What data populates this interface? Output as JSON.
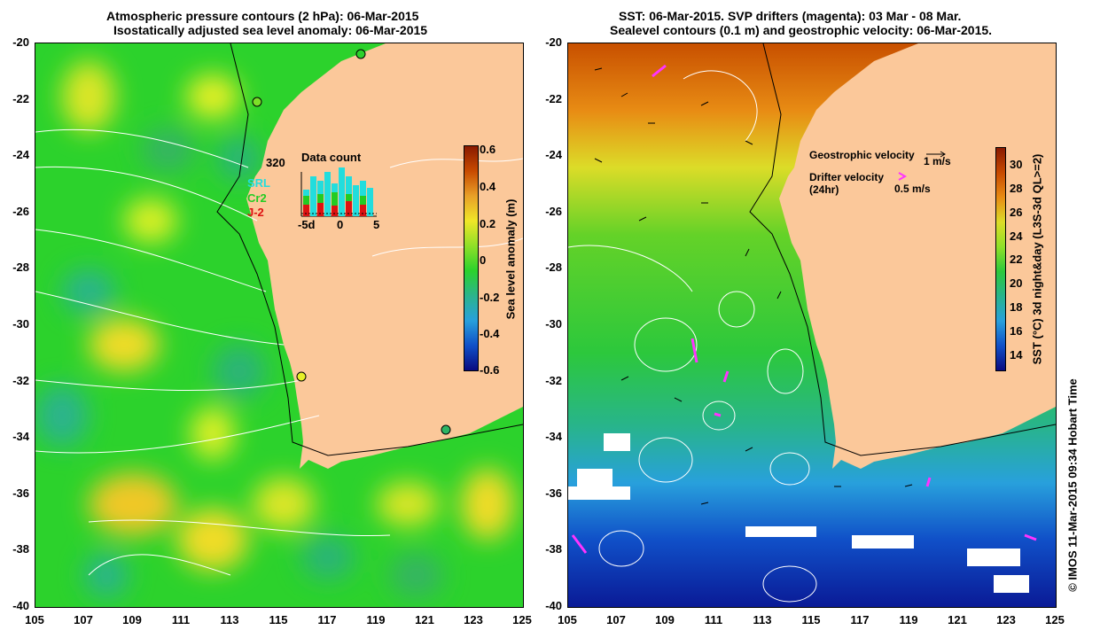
{
  "left_panel": {
    "title_line1": "Atmospheric pressure contours (2 hPa): 06-Mar-2015",
    "title_line2": "Isostatically adjusted sea level anomaly: 06-Mar-2015",
    "colorbar": {
      "label": "Sea level anomaly (m)",
      "ticks": [
        "0.6",
        "0.4",
        "0.2",
        "0",
        "-0.2",
        "-0.4",
        "-0.6"
      ],
      "range": [
        -0.6,
        0.6
      ]
    },
    "inset": {
      "title": "Data count",
      "max_label": "320",
      "legend": [
        "SRL",
        "Cr2",
        "J-2"
      ],
      "legend_colors": [
        "#22dddd",
        "#22cc22",
        "#dd1111"
      ],
      "x_ticks": [
        "-5d",
        "0",
        "5"
      ]
    }
  },
  "right_panel": {
    "title_line1": "SST: 06-Mar-2015. SVP drifters (magenta): 03 Mar - 08 Mar.",
    "title_line2": "Sealevel contours (0.1 m) and geostrophic velocity: 06-Mar-2015.",
    "colorbar": {
      "label": "SST (°C) 3d night&day (L3S-3d QL>=2)",
      "ticks": [
        "30",
        "28",
        "26",
        "24",
        "22",
        "20",
        "18",
        "16",
        "14"
      ],
      "range": [
        13,
        31.5
      ]
    },
    "geo_velocity_label": "Geostrophic velocity",
    "geo_velocity_scale": "1 m/s",
    "drifter_velocity_label": "Drifter velocity",
    "drifter_velocity_sub": "(24hr)",
    "drifter_velocity_scale": "0.5 m/s"
  },
  "axes": {
    "y_ticks": [
      "-20",
      "-22",
      "-24",
      "-26",
      "-28",
      "-30",
      "-32",
      "-34",
      "-36",
      "-38",
      "-40"
    ],
    "x_ticks": [
      "105",
      "107",
      "109",
      "111",
      "113",
      "115",
      "117",
      "119",
      "121",
      "123",
      "125"
    ]
  },
  "credit": "© IMOS 11-Mar-2015 09:34 Hobart Time",
  "colors": {
    "land": "#fbc89a",
    "drifter": "#ff33ff"
  }
}
